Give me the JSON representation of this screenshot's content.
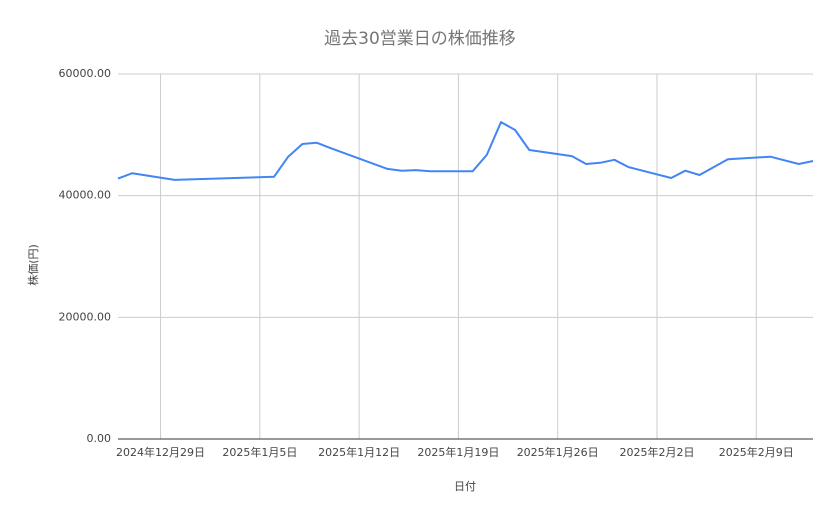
{
  "chart_data": {
    "type": "line",
    "title": "過去30営業日の株価推移",
    "x_label": "日付",
    "y_label": "株価(円)",
    "color": "#4285f4",
    "grid": true,
    "x": [
      "2024-12-26",
      "2024-12-27",
      "2024-12-30",
      "2025-01-06",
      "2025-01-07",
      "2025-01-08",
      "2025-01-09",
      "2025-01-10",
      "2025-01-14",
      "2025-01-15",
      "2025-01-16",
      "2025-01-17",
      "2025-01-20",
      "2025-01-21",
      "2025-01-22",
      "2025-01-23",
      "2025-01-24",
      "2025-01-27",
      "2025-01-28",
      "2025-01-29",
      "2025-01-30",
      "2025-01-31",
      "2025-02-03",
      "2025-02-04",
      "2025-02-05",
      "2025-02-06",
      "2025-02-07",
      "2025-02-10",
      "2025-02-12",
      "2025-02-13"
    ],
    "values": [
      42800,
      43700,
      42600,
      43100,
      46400,
      48500,
      48700,
      47800,
      44400,
      44100,
      44200,
      44000,
      44000,
      46700,
      52100,
      50800,
      47500,
      46500,
      45200,
      45400,
      45900,
      44700,
      42900,
      44100,
      43400,
      44700,
      46000,
      46400,
      45200,
      45700
    ],
    "xlim": [
      "2024-12-26",
      "2025-02-13"
    ],
    "xticks": [
      {
        "value": "2024-12-29",
        "label": "2024年12月29日"
      },
      {
        "value": "2025-01-05",
        "label": "2025年1月5日"
      },
      {
        "value": "2025-01-12",
        "label": "2025年1月12日"
      },
      {
        "value": "2025-01-19",
        "label": "2025年1月19日"
      },
      {
        "value": "2025-01-26",
        "label": "2025年1月26日"
      },
      {
        "value": "2025-02-02",
        "label": "2025年2月2日"
      },
      {
        "value": "2025-02-09",
        "label": "2025年2月9日"
      }
    ],
    "ylim": [
      0,
      60000
    ],
    "yticks": [
      {
        "value": 0,
        "label": "0.00"
      },
      {
        "value": 20000,
        "label": "20000.00"
      },
      {
        "value": 40000,
        "label": "40000.00"
      },
      {
        "value": 60000,
        "label": "60000.00"
      }
    ]
  }
}
